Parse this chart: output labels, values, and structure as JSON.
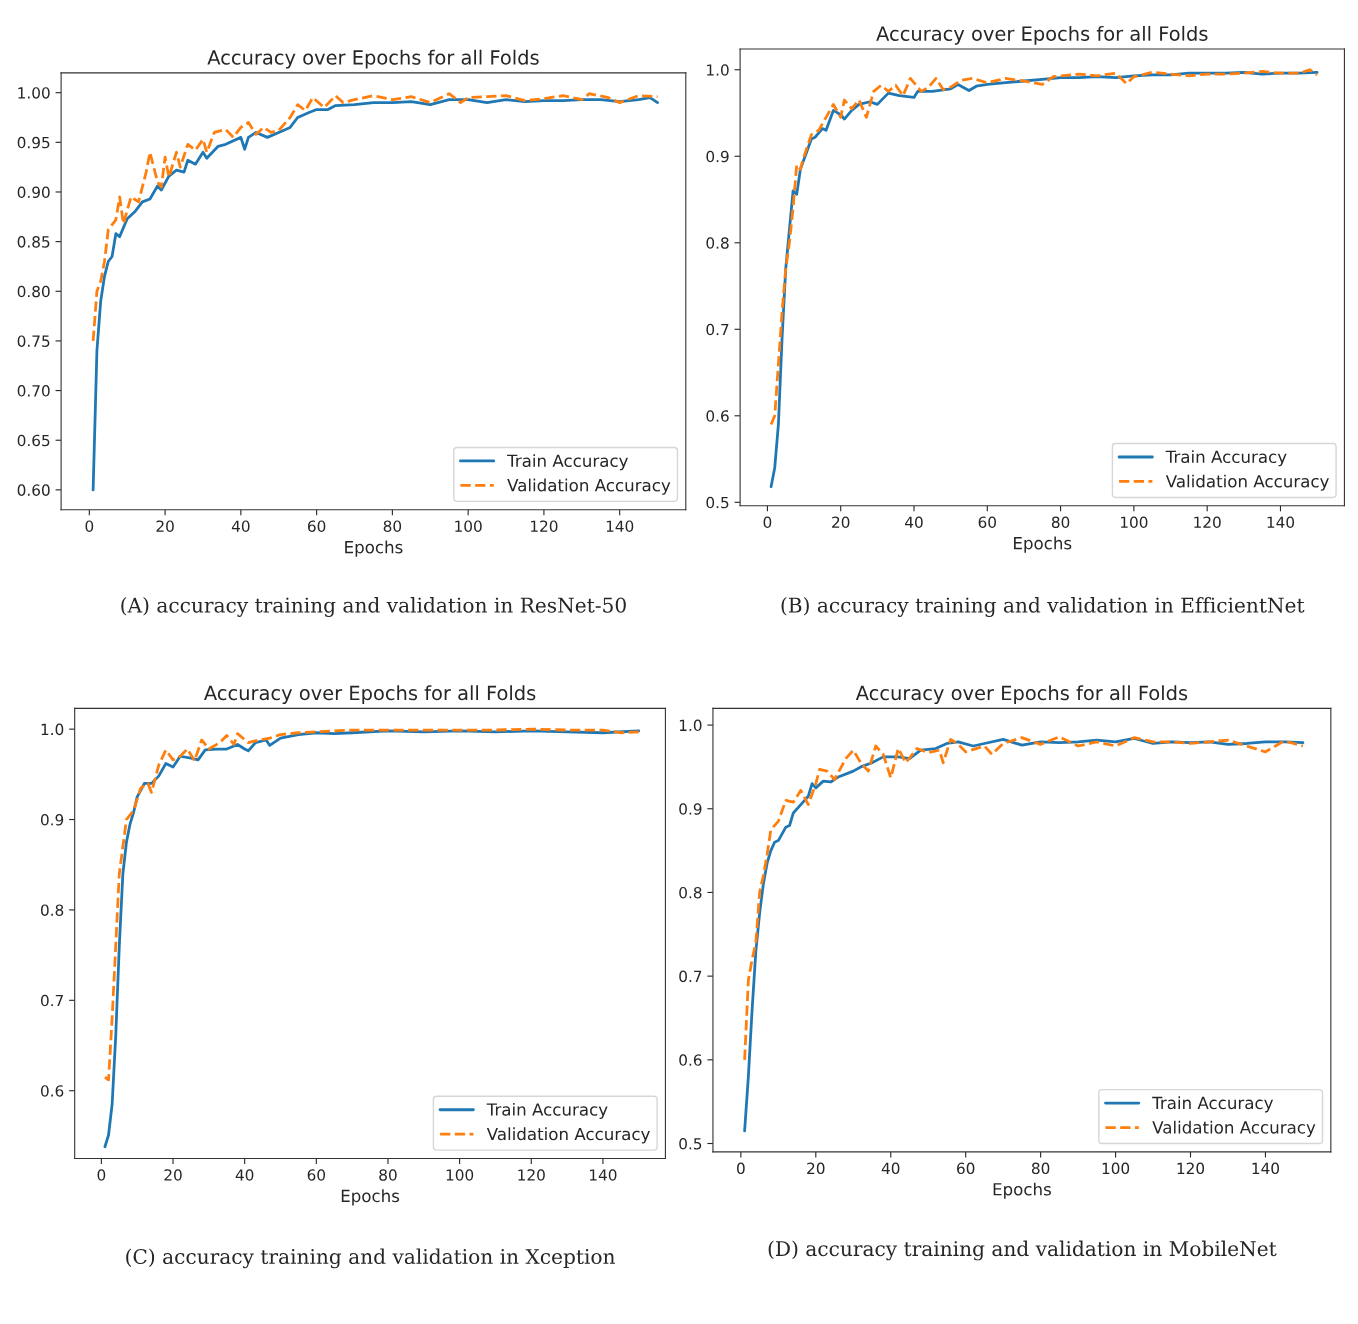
{
  "chart_data": [
    {
      "type": "line",
      "title": "Accuracy over Epochs for all Folds",
      "xlabel": "Epochs",
      "annotations": [
        "(A) accuracy training and validation in ResNet-50"
      ],
      "legend": "bottom right",
      "grid": false,
      "xlim": [
        -7.45,
        157.45
      ],
      "ylim": [
        0.58,
        1.02
      ],
      "xticks": [
        0,
        20,
        40,
        60,
        80,
        100,
        120,
        140
      ],
      "yticks": [
        {
          "value": 0.6,
          "label": "0.60"
        },
        0.65,
        {
          "value": 0.7,
          "label": "0.70"
        },
        0.75,
        {
          "value": 0.8,
          "label": "0.80"
        },
        0.85,
        {
          "value": 0.9,
          "label": "0.90"
        },
        0.95,
        {
          "value": 1.0,
          "label": "1.00"
        }
      ],
      "series": [
        {
          "name": "Train Accuracy",
          "color": "#1f77b4",
          "line_style": "solid",
          "x": [
            1,
            2,
            3,
            4,
            5,
            6,
            7,
            8,
            10,
            12,
            14,
            16,
            18,
            19,
            21,
            23,
            25,
            26,
            28,
            30,
            31,
            34,
            36,
            40,
            41,
            42,
            44,
            47,
            50,
            53,
            55,
            58,
            60,
            63,
            65,
            70,
            75,
            80,
            85,
            90,
            95,
            100,
            105,
            110,
            115,
            120,
            125,
            130,
            135,
            140,
            145,
            148,
            150
          ],
          "values": [
            0.6,
            0.74,
            0.79,
            0.815,
            0.83,
            0.835,
            0.858,
            0.855,
            0.873,
            0.88,
            0.89,
            0.893,
            0.906,
            0.902,
            0.916,
            0.922,
            0.92,
            0.932,
            0.928,
            0.94,
            0.934,
            0.946,
            0.948,
            0.955,
            0.943,
            0.955,
            0.96,
            0.955,
            0.96,
            0.965,
            0.975,
            0.98,
            0.983,
            0.983,
            0.987,
            0.988,
            0.99,
            0.99,
            0.991,
            0.988,
            0.993,
            0.993,
            0.99,
            0.993,
            0.991,
            0.992,
            0.992,
            0.993,
            0.993,
            0.991,
            0.993,
            0.995,
            0.99
          ]
        },
        {
          "name": "Validation Accuracy",
          "color": "#ff7f0e",
          "line_style": "dashed",
          "x": [
            1,
            2,
            3,
            4,
            5,
            7,
            8,
            9,
            11,
            13,
            15,
            16,
            18,
            19,
            20,
            21,
            23,
            24,
            26,
            28,
            30,
            31,
            33,
            36,
            38,
            40,
            42,
            44,
            46,
            48,
            50,
            53,
            55,
            57,
            59,
            62,
            65,
            67,
            70,
            75,
            80,
            85,
            90,
            95,
            98,
            100,
            105,
            110,
            115,
            120,
            125,
            130,
            132,
            137,
            140,
            145,
            150
          ],
          "values": [
            0.75,
            0.8,
            0.81,
            0.83,
            0.862,
            0.872,
            0.895,
            0.868,
            0.895,
            0.89,
            0.92,
            0.94,
            0.91,
            0.905,
            0.935,
            0.915,
            0.94,
            0.925,
            0.948,
            0.942,
            0.953,
            0.94,
            0.96,
            0.963,
            0.955,
            0.965,
            0.97,
            0.958,
            0.965,
            0.96,
            0.962,
            0.975,
            0.988,
            0.982,
            0.995,
            0.985,
            0.997,
            0.99,
            0.993,
            0.997,
            0.993,
            0.996,
            0.99,
            0.999,
            0.99,
            0.995,
            0.996,
            0.997,
            0.992,
            0.994,
            0.997,
            0.993,
            0.999,
            0.995,
            0.99,
            0.997,
            0.996
          ]
        }
      ]
    },
    {
      "type": "line",
      "title": "Accuracy over Epochs for all Folds",
      "xlabel": "Epochs",
      "annotations": [
        "(B) accuracy training and validation in EfficientNet"
      ],
      "legend": "bottom right",
      "grid": false,
      "xlim": [
        -7.45,
        157.45
      ],
      "ylim": [
        0.496,
        1.024
      ],
      "xticks": [
        0,
        20,
        40,
        60,
        80,
        100,
        120,
        140
      ],
      "yticks": [
        0.5,
        0.6,
        0.7,
        0.8,
        0.9,
        {
          "value": 1.0,
          "label": "1.0"
        }
      ],
      "series": [
        {
          "name": "Train Accuracy",
          "color": "#1f77b4",
          "line_style": "solid",
          "x": [
            1,
            2,
            3,
            4,
            5,
            7,
            8,
            9,
            12,
            13,
            15,
            16,
            18,
            20,
            21,
            23,
            25,
            28,
            30,
            33,
            36,
            40,
            41,
            45,
            50,
            52,
            55,
            57,
            60,
            65,
            70,
            75,
            80,
            85,
            90,
            95,
            100,
            105,
            110,
            115,
            120,
            125,
            130,
            135,
            140,
            145,
            150
          ],
          "values": [
            0.518,
            0.54,
            0.59,
            0.69,
            0.77,
            0.86,
            0.856,
            0.885,
            0.92,
            0.922,
            0.932,
            0.93,
            0.953,
            0.948,
            0.943,
            0.953,
            0.96,
            0.963,
            0.96,
            0.973,
            0.97,
            0.968,
            0.975,
            0.975,
            0.978,
            0.983,
            0.976,
            0.981,
            0.983,
            0.985,
            0.987,
            0.989,
            0.991,
            0.991,
            0.992,
            0.991,
            0.993,
            0.994,
            0.994,
            0.996,
            0.996,
            0.996,
            0.997,
            0.995,
            0.996,
            0.996,
            0.997
          ]
        },
        {
          "name": "Validation Accuracy",
          "color": "#ff7f0e",
          "line_style": "dashed",
          "x": [
            1,
            2,
            3,
            4,
            5,
            6,
            7,
            8,
            9,
            10,
            12,
            14,
            16,
            18,
            20,
            21,
            23,
            25,
            27,
            29,
            31,
            33,
            35,
            37,
            39,
            42,
            44,
            46,
            48,
            50,
            53,
            56,
            60,
            65,
            70,
            75,
            78,
            80,
            85,
            90,
            95,
            98,
            100,
            105,
            110,
            115,
            120,
            125,
            130,
            135,
            140,
            145,
            148,
            150
          ],
          "values": [
            0.59,
            0.6,
            0.66,
            0.72,
            0.77,
            0.8,
            0.84,
            0.89,
            0.885,
            0.9,
            0.925,
            0.93,
            0.945,
            0.96,
            0.945,
            0.965,
            0.955,
            0.965,
            0.945,
            0.975,
            0.982,
            0.975,
            0.982,
            0.97,
            0.99,
            0.975,
            0.98,
            0.99,
            0.977,
            0.98,
            0.988,
            0.99,
            0.985,
            0.99,
            0.987,
            0.983,
            0.992,
            0.993,
            0.995,
            0.993,
            0.996,
            0.984,
            0.992,
            0.997,
            0.995,
            0.993,
            0.995,
            0.995,
            0.996,
            0.998,
            0.996,
            0.996,
            1.0,
            0.994
          ]
        }
      ]
    },
    {
      "type": "line",
      "title": "Accuracy over Epochs for all Folds",
      "xlabel": "Epochs",
      "annotations": [
        "(C) accuracy training and validation in Xception"
      ],
      "legend": "bottom right",
      "grid": false,
      "xlim": [
        -7.45,
        157.45
      ],
      "ylim": [
        0.525,
        1.023
      ],
      "xticks": [
        0,
        20,
        40,
        60,
        80,
        100,
        120,
        140
      ],
      "yticks": [
        0.6,
        0.7,
        0.8,
        0.9,
        {
          "value": 1.0,
          "label": "1.0"
        }
      ],
      "series": [
        {
          "name": "Train Accuracy",
          "color": "#1f77b4",
          "line_style": "solid",
          "x": [
            1,
            2,
            3,
            4,
            5,
            6,
            7,
            8,
            9,
            10,
            12,
            14,
            16,
            18,
            20,
            22,
            25,
            27,
            29,
            32,
            35,
            38,
            40,
            41,
            43,
            46,
            47,
            50,
            55,
            60,
            65,
            70,
            80,
            90,
            100,
            110,
            120,
            130,
            140,
            150
          ],
          "values": [
            0.538,
            0.551,
            0.585,
            0.66,
            0.76,
            0.84,
            0.875,
            0.895,
            0.908,
            0.925,
            0.94,
            0.94,
            0.948,
            0.962,
            0.958,
            0.97,
            0.968,
            0.966,
            0.977,
            0.978,
            0.978,
            0.983,
            0.978,
            0.976,
            0.985,
            0.988,
            0.982,
            0.99,
            0.994,
            0.996,
            0.995,
            0.996,
            0.998,
            0.997,
            0.998,
            0.997,
            0.998,
            0.997,
            0.996,
            0.998
          ]
        },
        {
          "name": "Validation Accuracy",
          "color": "#ff7f0e",
          "line_style": "dashed",
          "x": [
            1,
            2,
            3,
            4,
            5,
            6,
            7,
            9,
            11,
            13,
            14,
            16,
            18,
            20,
            22,
            24,
            26,
            28,
            30,
            33,
            35,
            37,
            38,
            41,
            44,
            47,
            50,
            55,
            60,
            65,
            70,
            80,
            90,
            100,
            110,
            120,
            130,
            140,
            145,
            150
          ],
          "values": [
            0.615,
            0.612,
            0.68,
            0.76,
            0.84,
            0.87,
            0.9,
            0.91,
            0.935,
            0.94,
            0.93,
            0.96,
            0.977,
            0.966,
            0.97,
            0.978,
            0.965,
            0.988,
            0.978,
            0.985,
            0.993,
            0.983,
            0.995,
            0.985,
            0.988,
            0.99,
            0.994,
            0.996,
            0.997,
            0.998,
            0.999,
            0.999,
            0.999,
            0.999,
            0.999,
            1.0,
            0.999,
            0.999,
            0.996,
            0.997
          ]
        }
      ]
    },
    {
      "type": "line",
      "title": "Accuracy over Epochs for all Folds",
      "xlabel": "Epochs",
      "annotations": [
        "(D) accuracy training and validation in MobileNet"
      ],
      "legend": "bottom right",
      "grid": false,
      "xlim": [
        -7.45,
        157.45
      ],
      "ylim": [
        0.49,
        1.02
      ],
      "xticks": [
        0,
        20,
        40,
        60,
        80,
        100,
        120,
        140
      ],
      "yticks": [
        0.5,
        0.6,
        0.7,
        0.8,
        0.9,
        {
          "value": 1.0,
          "label": "1.0"
        }
      ],
      "series": [
        {
          "name": "Train Accuracy",
          "color": "#1f77b4",
          "line_style": "solid",
          "x": [
            1,
            2,
            3,
            4,
            5,
            6,
            7,
            8,
            9,
            10,
            12,
            13,
            14,
            16,
            18,
            19,
            20,
            22,
            24,
            26,
            30,
            32,
            35,
            38,
            42,
            45,
            48,
            52,
            55,
            58,
            62,
            65,
            70,
            75,
            80,
            85,
            90,
            95,
            100,
            105,
            110,
            115,
            120,
            125,
            130,
            135,
            140,
            145,
            150
          ],
          "values": [
            0.515,
            0.58,
            0.66,
            0.73,
            0.775,
            0.81,
            0.835,
            0.85,
            0.86,
            0.862,
            0.878,
            0.88,
            0.895,
            0.905,
            0.915,
            0.93,
            0.925,
            0.933,
            0.932,
            0.938,
            0.945,
            0.95,
            0.955,
            0.962,
            0.962,
            0.96,
            0.97,
            0.972,
            0.978,
            0.98,
            0.975,
            0.978,
            0.983,
            0.976,
            0.98,
            0.979,
            0.98,
            0.982,
            0.98,
            0.984,
            0.978,
            0.98,
            0.979,
            0.98,
            0.977,
            0.978,
            0.98,
            0.98,
            0.979
          ]
        },
        {
          "name": "Validation Accuracy",
          "color": "#ff7f0e",
          "line_style": "dashed",
          "x": [
            1,
            2,
            3,
            4,
            5,
            6,
            7,
            8,
            10,
            12,
            14,
            16,
            18,
            20,
            21,
            23,
            25,
            28,
            30,
            32,
            34,
            36,
            38,
            40,
            42,
            44,
            47,
            50,
            53,
            54,
            56,
            58,
            60,
            65,
            67,
            70,
            75,
            80,
            85,
            90,
            95,
            100,
            105,
            110,
            115,
            120,
            125,
            130,
            135,
            140,
            145,
            150
          ],
          "values": [
            0.6,
            0.695,
            0.72,
            0.74,
            0.8,
            0.82,
            0.845,
            0.875,
            0.885,
            0.91,
            0.908,
            0.922,
            0.905,
            0.93,
            0.947,
            0.945,
            0.935,
            0.96,
            0.97,
            0.955,
            0.945,
            0.975,
            0.965,
            0.937,
            0.972,
            0.955,
            0.972,
            0.967,
            0.97,
            0.955,
            0.983,
            0.977,
            0.968,
            0.975,
            0.965,
            0.978,
            0.985,
            0.977,
            0.986,
            0.975,
            0.98,
            0.975,
            0.985,
            0.98,
            0.98,
            0.978,
            0.98,
            0.982,
            0.975,
            0.968,
            0.981,
            0.975
          ]
        }
      ]
    }
  ]
}
